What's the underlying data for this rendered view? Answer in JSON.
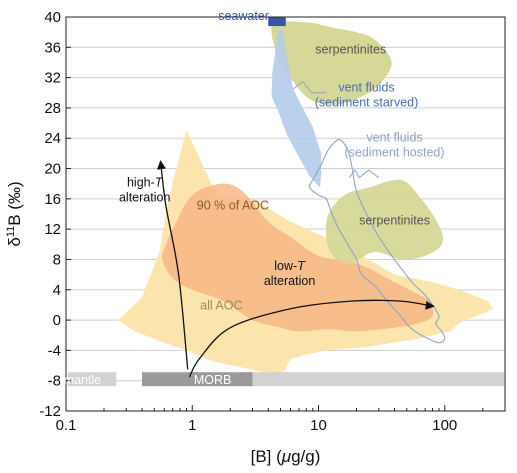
{
  "chart_data": {
    "type": "scatter",
    "xscale": "log",
    "xlim": [
      0.1,
      300
    ],
    "ylim": [
      -12,
      40
    ],
    "x_ticks": [
      "0.1",
      "1",
      "10",
      "100"
    ],
    "y_ticks": [
      "40",
      "36",
      "32",
      "28",
      "24",
      "20",
      "16",
      "12",
      "8",
      "4",
      "0",
      "-4",
      "-8",
      "-12"
    ],
    "xlabel": {
      "prefix": "[B] (",
      "mu": "μ",
      "suffix": "g/g)"
    },
    "ylabel": {
      "delta": "δ",
      "sup": "11",
      "suffix": "B (‰)"
    },
    "grid": "horizontal",
    "colors": {
      "aoc": "#fbe5ad",
      "aoc90": "#f6b786",
      "serpentinite": "#d6d897",
      "vent_starved": "#b7cde9",
      "vent_hosted_line": "#8fa4c6",
      "seawater": "#3c55a3",
      "mantle_bar": "#d2d2d2",
      "morb_bar": "#9a9a9a"
    },
    "regions": {
      "all_aoc": {
        "label": "all AOC",
        "points": [
          [
            0.26,
            0
          ],
          [
            0.4,
            3
          ],
          [
            0.55,
            9
          ],
          [
            0.62,
            14
          ],
          [
            0.72,
            19
          ],
          [
            0.9,
            25
          ],
          [
            1.1,
            22
          ],
          [
            1.6,
            16
          ],
          [
            3,
            16
          ],
          [
            6,
            13
          ],
          [
            15,
            10
          ],
          [
            25,
            8
          ],
          [
            40,
            6
          ],
          [
            80,
            5
          ],
          [
            130,
            4
          ],
          [
            220,
            2.5
          ],
          [
            240,
            1.5
          ],
          [
            180,
            0.5
          ],
          [
            140,
            0
          ],
          [
            110,
            -1.5
          ],
          [
            60,
            -2.5
          ],
          [
            25,
            -3.5
          ],
          [
            12,
            -4
          ],
          [
            8,
            -4.5
          ],
          [
            6,
            -5.2
          ],
          [
            5.2,
            -7
          ],
          [
            4,
            -7
          ],
          [
            1.5,
            -5.5
          ],
          [
            0.9,
            -4
          ],
          [
            0.6,
            -3
          ],
          [
            0.35,
            -1.5
          ]
        ]
      },
      "aoc_90": {
        "label": "90 % of AOC",
        "points": [
          [
            0.62,
            10
          ],
          [
            0.75,
            13
          ],
          [
            1,
            16.5
          ],
          [
            1.7,
            18
          ],
          [
            2.5,
            17
          ],
          [
            4,
            13
          ],
          [
            6,
            11
          ],
          [
            10,
            8.5
          ],
          [
            20,
            7.5
          ],
          [
            40,
            5
          ],
          [
            60,
            3.5
          ],
          [
            75,
            2.5
          ],
          [
            80,
            0.5
          ],
          [
            60,
            -0.5
          ],
          [
            40,
            -1
          ],
          [
            20,
            -1.5
          ],
          [
            12,
            -1.2
          ],
          [
            7,
            -1.5
          ],
          [
            5,
            -1
          ],
          [
            3,
            0
          ],
          [
            2,
            2
          ],
          [
            1.5,
            3
          ],
          [
            1,
            4
          ],
          [
            0.7,
            5.5
          ],
          [
            0.58,
            8
          ]
        ]
      },
      "serpentinite_upper": {
        "label": "serpentinites",
        "points": [
          [
            4.3,
            39
          ],
          [
            6,
            39.4
          ],
          [
            9,
            39.2
          ],
          [
            13,
            38.6
          ],
          [
            20,
            38
          ],
          [
            28,
            37
          ],
          [
            38,
            34
          ],
          [
            30,
            31
          ],
          [
            22,
            29.5
          ],
          [
            16,
            28.6
          ],
          [
            11,
            28.5
          ],
          [
            8,
            29.5
          ],
          [
            6,
            32
          ],
          [
            4.6,
            35.5
          ]
        ]
      },
      "serpentinite_lower": {
        "label": "serpentinites",
        "points": [
          [
            12,
            14
          ],
          [
            16,
            16.5
          ],
          [
            25,
            17.5
          ],
          [
            45,
            18.5
          ],
          [
            65,
            16
          ],
          [
            90,
            12.5
          ],
          [
            95,
            10
          ],
          [
            70,
            8.5
          ],
          [
            45,
            8
          ],
          [
            28,
            9
          ],
          [
            18,
            7.5
          ],
          [
            14,
            8
          ],
          [
            12,
            9.5
          ],
          [
            11.5,
            11.5
          ]
        ]
      },
      "vent_sediment_starved": {
        "label": [
          "vent fluids",
          "(sediment starved)"
        ],
        "points": [
          [
            4.3,
            32.5
          ],
          [
            4.55,
            35.5
          ],
          [
            4.8,
            38.5
          ],
          [
            5.2,
            38.2
          ],
          [
            5.6,
            35
          ],
          [
            6.3,
            30.5
          ],
          [
            7.5,
            28
          ],
          [
            9,
            25.5
          ],
          [
            10.5,
            22
          ],
          [
            10.5,
            19.5
          ],
          [
            10.3,
            17.5
          ],
          [
            8.5,
            19
          ],
          [
            7,
            21.5
          ],
          [
            5.6,
            24.5
          ],
          [
            4.8,
            27.5
          ],
          [
            4.25,
            29.5
          ]
        ]
      },
      "vent_sediment_hosted": {
        "label": [
          "vent fluids",
          "(sediment hosted)"
        ],
        "points": [
          [
            9,
            18.5
          ],
          [
            10.5,
            20.5
          ],
          [
            12,
            22.5
          ],
          [
            14.5,
            23.8
          ],
          [
            17,
            22.5
          ],
          [
            18.5,
            20
          ],
          [
            20,
            17
          ],
          [
            24,
            14
          ],
          [
            30,
            11
          ],
          [
            40,
            8
          ],
          [
            55,
            5
          ],
          [
            70,
            3.3
          ],
          [
            80,
            2
          ],
          [
            90,
            0.5
          ],
          [
            85,
            -0.5
          ],
          [
            95,
            -1.5
          ],
          [
            100,
            -2.5
          ],
          [
            90,
            -3
          ],
          [
            75,
            -2.5
          ],
          [
            58,
            -1.5
          ],
          [
            50,
            -0.5
          ],
          [
            45,
            0.5
          ],
          [
            35,
            2.5
          ],
          [
            28,
            4.5
          ],
          [
            22,
            6
          ],
          [
            20,
            8
          ],
          [
            17,
            10
          ],
          [
            14,
            12.5
          ],
          [
            12.5,
            14.5
          ],
          [
            11.5,
            16
          ],
          [
            10,
            16.5
          ],
          [
            8.5,
            17.5
          ]
        ]
      }
    },
    "bars": [
      {
        "label": "mantle",
        "x": [
          0.1,
          0.25
        ],
        "y": -7.8
      },
      {
        "label": "MORB",
        "x": [
          0.4,
          3
        ],
        "y": -7.8
      },
      {
        "label": "",
        "x": [
          3,
          300
        ],
        "y": -7.8
      }
    ],
    "seawater": {
      "label": "seawater",
      "x": [
        4,
        5.5
      ],
      "y": [
        38.8,
        40
      ]
    },
    "arrows": [
      {
        "label": [
          "high-",
          "T",
          "alteration"
        ],
        "points": [
          [
            0.92,
            -6.5
          ],
          [
            0.78,
            6
          ],
          [
            0.62,
            15
          ],
          [
            0.56,
            21
          ]
        ]
      },
      {
        "label": [
          "low-",
          "T",
          "alteration"
        ],
        "points": [
          [
            0.95,
            -7.5
          ],
          [
            1.15,
            -5
          ],
          [
            2,
            -1
          ],
          [
            6,
            1.5
          ],
          [
            18,
            2.5
          ],
          [
            45,
            2.5
          ],
          [
            82,
            1.8
          ]
        ]
      }
    ],
    "leaders": [
      {
        "points": [
          [
            6.3,
            30.5
          ],
          [
            7.5,
            31.5
          ],
          [
            8.8,
            30
          ],
          [
            11.5,
            30
          ]
        ]
      },
      {
        "points": [
          [
            17.5,
            18.8
          ],
          [
            19.5,
            19.8
          ],
          [
            21,
            18.8
          ],
          [
            25,
            19.8
          ],
          [
            30,
            18.8
          ]
        ]
      }
    ]
  }
}
